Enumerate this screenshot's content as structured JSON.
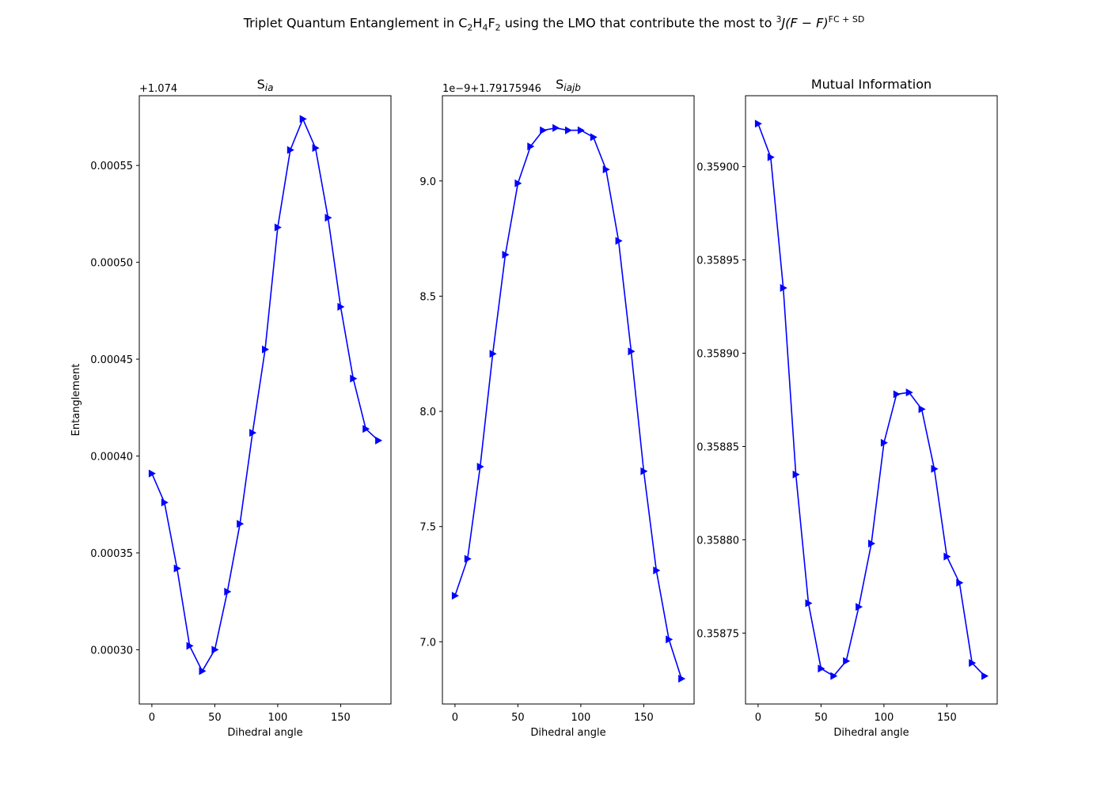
{
  "figure": {
    "suptitle_parts": {
      "p1": "Triplet Quantum Entanglement in C",
      "s1": "2",
      "p2": "H",
      "s2": "4",
      "p3": "F",
      "s3": "2",
      "p4": " using the LMO that contribute the most to ",
      "sup1": "3",
      "p5": "J(F − F)",
      "sup2": "FC + SD"
    }
  },
  "colors": {
    "line": "#0000ff",
    "axes": "#000000",
    "background": "#ffffff"
  },
  "chart_data": [
    {
      "type": "line",
      "title": "S",
      "title_sub": "ia",
      "xlabel": "Dihedral angle",
      "ylabel": "Entanglement",
      "offset_label": "+1.074",
      "marker": "triangle-right",
      "xlim": [
        -10,
        190
      ],
      "ylim": [
        0.000272,
        0.000586
      ],
      "xticks": [
        0,
        50,
        100,
        150
      ],
      "xtick_labels": [
        "0",
        "50",
        "100",
        "150"
      ],
      "yticks": [
        0.0003,
        0.00035,
        0.0004,
        0.00045,
        0.0005,
        0.00055
      ],
      "ytick_labels": [
        "0.00030",
        "0.00035",
        "0.00040",
        "0.00045",
        "0.00050",
        "0.00055"
      ],
      "x": [
        0,
        10,
        20,
        30,
        40,
        50,
        60,
        70,
        80,
        90,
        100,
        110,
        120,
        130,
        140,
        150,
        160,
        170,
        180
      ],
      "y": [
        0.000391,
        0.000376,
        0.000342,
        0.000302,
        0.000289,
        0.0003,
        0.00033,
        0.000365,
        0.000412,
        0.000455,
        0.000518,
        0.000558,
        0.000574,
        0.000559,
        0.000523,
        0.000477,
        0.00044,
        0.000414,
        0.000408
      ]
    },
    {
      "type": "line",
      "title": "S",
      "title_sub": "iajb",
      "xlabel": "Dihedral angle",
      "ylabel": "",
      "offset_label": "1e−9+1.79175946",
      "marker": "triangle-right",
      "xlim": [
        -10,
        190
      ],
      "ylim": [
        6.73,
        9.37
      ],
      "xticks": [
        0,
        50,
        100,
        150
      ],
      "xtick_labels": [
        "0",
        "50",
        "100",
        "150"
      ],
      "yticks": [
        7.0,
        7.5,
        8.0,
        8.5,
        9.0
      ],
      "ytick_labels": [
        "7.0",
        "7.5",
        "8.0",
        "8.5",
        "9.0"
      ],
      "x": [
        0,
        10,
        20,
        30,
        40,
        50,
        60,
        70,
        80,
        90,
        100,
        110,
        120,
        130,
        140,
        150,
        160,
        170,
        180
      ],
      "y": [
        7.2,
        7.36,
        7.76,
        8.25,
        8.68,
        8.99,
        9.15,
        9.22,
        9.23,
        9.22,
        9.22,
        9.19,
        9.05,
        8.74,
        8.26,
        7.74,
        7.31,
        7.01,
        6.84
      ]
    },
    {
      "type": "line",
      "title": "Mutual Information",
      "title_sub": "",
      "xlabel": "Dihedral angle",
      "ylabel": "",
      "offset_label": "",
      "marker": "triangle-right",
      "xlim": [
        -10,
        190
      ],
      "ylim": [
        0.358712,
        0.359038
      ],
      "xticks": [
        0,
        50,
        100,
        150
      ],
      "xtick_labels": [
        "0",
        "50",
        "100",
        "150"
      ],
      "yticks": [
        0.35875,
        0.3588,
        0.35885,
        0.3589,
        0.35895,
        0.359
      ],
      "ytick_labels": [
        "0.35875",
        "0.35880",
        "0.35885",
        "0.35890",
        "0.35895",
        "0.35900"
      ],
      "x": [
        0,
        10,
        20,
        30,
        40,
        50,
        60,
        70,
        80,
        90,
        100,
        110,
        120,
        130,
        140,
        150,
        160,
        170,
        180
      ],
      "y": [
        0.359023,
        0.359005,
        0.358935,
        0.358835,
        0.358766,
        0.358731,
        0.358727,
        0.358735,
        0.358764,
        0.358798,
        0.358852,
        0.358878,
        0.358879,
        0.35887,
        0.358838,
        0.358791,
        0.358777,
        0.358734,
        0.358727
      ]
    }
  ]
}
